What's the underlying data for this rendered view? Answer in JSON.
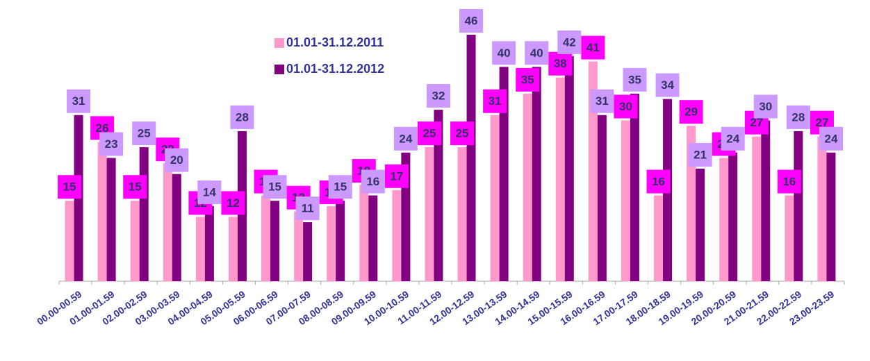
{
  "chart_data": {
    "type": "bar",
    "categories": [
      "00.00-00.59",
      "01.00-01.59",
      "02.00-02.59",
      "03.00-03.59",
      "04.00-04.59",
      "05.00-05.59",
      "06.00-06.59",
      "07.00-07.59",
      "08.00-08.59",
      "09.00-09.59",
      "10.00-10.59",
      "11.00-11.59",
      "12.00-12.59",
      "13.00-13.59",
      "14.00-14.59",
      "15.00-15.59",
      "16.00-16.59",
      "17.00-17.59",
      "18.00-18.59",
      "19.00-19.59",
      "20.00-20.59",
      "21.00-21.59",
      "22.00-22.59",
      "23.00-23.59"
    ],
    "series": [
      {
        "name": "01.01-31.12.2011",
        "color": "#ff99cc",
        "label_color": "#ff00ff",
        "values": [
          15,
          26,
          15,
          22,
          12,
          12,
          16,
          13,
          14,
          18,
          17,
          25,
          25,
          31,
          35,
          38,
          41,
          30,
          16,
          29,
          23,
          27,
          16,
          27
        ]
      },
      {
        "name": "01.01-31.12.2012",
        "color": "#800080",
        "label_color": "#cc99ff",
        "values": [
          31,
          23,
          25,
          20,
          14,
          28,
          15,
          11,
          15,
          16,
          24,
          32,
          46,
          40,
          40,
          42,
          31,
          35,
          34,
          21,
          24,
          30,
          28,
          24
        ]
      }
    ],
    "ylim": [
      0,
      46
    ]
  }
}
